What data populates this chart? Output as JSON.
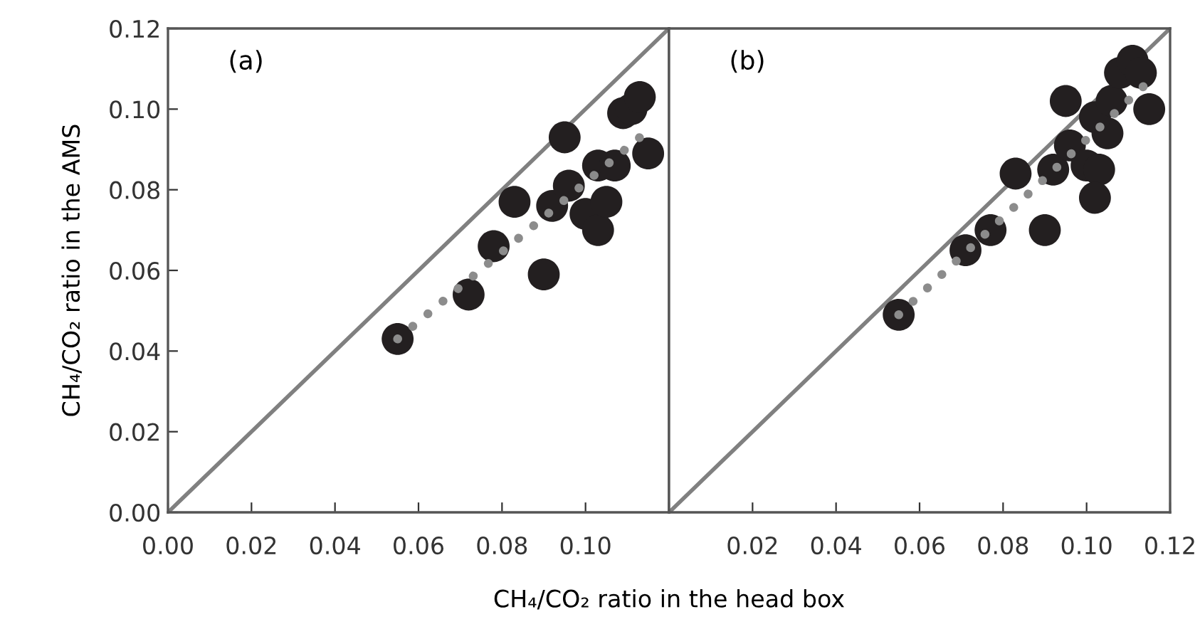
{
  "chart_data": [
    {
      "type": "scatter",
      "annotations": [
        "(a)"
      ],
      "ylabel": "CH₄/CO₂ ratio in the AMS",
      "xlabel": "CH₄/CO₂ ratio in the head box",
      "xlim": [
        0,
        0.12
      ],
      "ylim": [
        0,
        0.12
      ],
      "xticks": [
        {
          "value": 0,
          "label": "0.00"
        },
        {
          "value": 0.02,
          "label": "0.02"
        },
        {
          "value": 0.04,
          "label": "0.04"
        },
        {
          "value": 0.06,
          "label": "0.06"
        },
        {
          "value": 0.08,
          "label": "0.08"
        },
        {
          "value": 0.1,
          "label": "0.10"
        },
        {
          "value": 0.12,
          "label": null
        }
      ],
      "yticks": [
        {
          "value": 0,
          "label": "0.00"
        },
        {
          "value": 0.02,
          "label": "0.02"
        },
        {
          "value": 0.04,
          "label": "0.04"
        },
        {
          "value": 0.06,
          "label": "0.06"
        },
        {
          "value": 0.08,
          "label": "0.08"
        },
        {
          "value": 0.1,
          "label": "0.10"
        },
        {
          "value": 0.12,
          "label": "0.12"
        }
      ],
      "grid": false,
      "legend": false,
      "series": [
        {
          "type": "line",
          "color": "#808080",
          "line_style": "solid",
          "marker": "none",
          "x": [
            0,
            0.12
          ],
          "values": [
            0,
            0.12
          ]
        },
        {
          "color": "#231f20",
          "marker": "circle",
          "x": [
            0.055,
            0.072,
            0.078,
            0.083,
            0.09,
            0.092,
            0.095,
            0.096,
            0.1,
            0.103,
            0.105,
            0.103,
            0.107,
            0.109,
            0.111,
            0.113,
            0.115
          ],
          "values": [
            0.043,
            0.054,
            0.066,
            0.077,
            0.059,
            0.076,
            0.093,
            0.081,
            0.074,
            0.07,
            0.077,
            0.086,
            0.086,
            0.099,
            0.1,
            0.103,
            0.089
          ]
        },
        {
          "type": "line",
          "color": "#8c8c8c",
          "line_style": "dotted",
          "x": [
            0.055,
            0.113
          ],
          "values": [
            0.043,
            0.093
          ]
        }
      ]
    },
    {
      "type": "scatter",
      "annotations": [
        "(b)"
      ],
      "tick_labels": "x",
      "xlim": [
        0,
        0.12
      ],
      "ylim": [
        0,
        0.12
      ],
      "xticks": [
        {
          "value": 0,
          "label": null
        },
        {
          "value": 0.02,
          "label": "0.02"
        },
        {
          "value": 0.04,
          "label": "0.04"
        },
        {
          "value": 0.06,
          "label": "0.06"
        },
        {
          "value": 0.08,
          "label": "0.08"
        },
        {
          "value": 0.1,
          "label": "0.10"
        },
        {
          "value": 0.12,
          "label": "0.12"
        }
      ],
      "grid": false,
      "legend": false,
      "series": [
        {
          "type": "line",
          "color": "#808080",
          "line_style": "solid",
          "marker": "none",
          "x": [
            0,
            0.12
          ],
          "values": [
            0,
            0.12
          ]
        },
        {
          "color": "#231f20",
          "marker": "circle",
          "x": [
            0.055,
            0.071,
            0.077,
            0.083,
            0.09,
            0.092,
            0.095,
            0.096,
            0.1,
            0.103,
            0.102,
            0.105,
            0.102,
            0.106,
            0.108,
            0.111,
            0.113,
            0.115
          ],
          "values": [
            0.049,
            0.065,
            0.07,
            0.084,
            0.07,
            0.085,
            0.102,
            0.091,
            0.086,
            0.085,
            0.078,
            0.094,
            0.098,
            0.102,
            0.109,
            0.112,
            0.109,
            0.1
          ]
        },
        {
          "type": "line",
          "color": "#8c8c8c",
          "line_style": "dotted",
          "x": [
            0.055,
            0.114
          ],
          "values": [
            0.049,
            0.106
          ]
        }
      ]
    }
  ]
}
